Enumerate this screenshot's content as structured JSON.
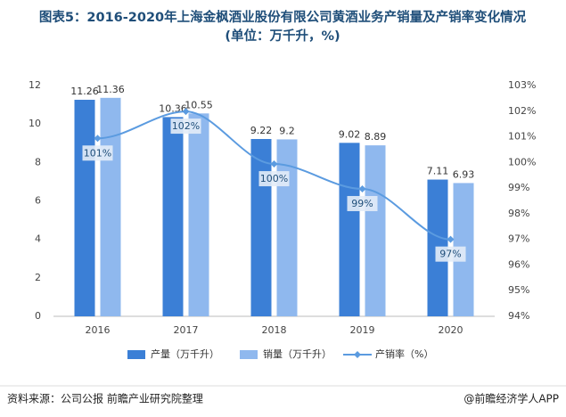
{
  "chart_data": {
    "type": "bar",
    "title": "图表5：2016-2020年上海金枫酒业股份有限公司黄酒业务产销量及产销率变化情况",
    "subtitle": "(单位：万千升，%)",
    "categories": [
      "2016",
      "2017",
      "2018",
      "2019",
      "2020"
    ],
    "series": [
      {
        "name": "产量（万千升）",
        "color": "#3b7fd6",
        "values": [
          11.26,
          10.36,
          9.22,
          9.02,
          7.11
        ]
      },
      {
        "name": "销量（万千升）",
        "color": "#8fb8ee",
        "values": [
          11.36,
          10.55,
          9.2,
          8.89,
          6.93
        ]
      },
      {
        "name": "产销率（%）",
        "color": "#5b9be0",
        "type": "line",
        "axis": "y2",
        "values": [
          100.94,
          101.99,
          99.94,
          98.97,
          97.0
        ],
        "value_labels": [
          "101%",
          "102%",
          "100%",
          "99%",
          "97%"
        ]
      }
    ],
    "ylim": [
      0,
      12
    ],
    "yticks": [
      0,
      2,
      4,
      6,
      8,
      10,
      12
    ],
    "y2lim": [
      94,
      103
    ],
    "y2ticks": [
      {
        "value": 94,
        "label": "94%"
      },
      {
        "value": 95,
        "label": "95%"
      },
      {
        "value": 96,
        "label": "96%"
      },
      {
        "value": 97,
        "label": "97%"
      },
      {
        "value": 98,
        "label": "98%"
      },
      {
        "value": 99,
        "label": "99%"
      },
      {
        "value": 100,
        "label": "100%"
      },
      {
        "value": 101,
        "label": "101%"
      },
      {
        "value": 102,
        "label": "102%"
      },
      {
        "value": 103,
        "label": "103%"
      }
    ],
    "grid": false,
    "legend": "bottom",
    "source": "资料来源：公司公报 前瞻产业研究院整理",
    "credit": "@前瞻经济学人APP"
  }
}
